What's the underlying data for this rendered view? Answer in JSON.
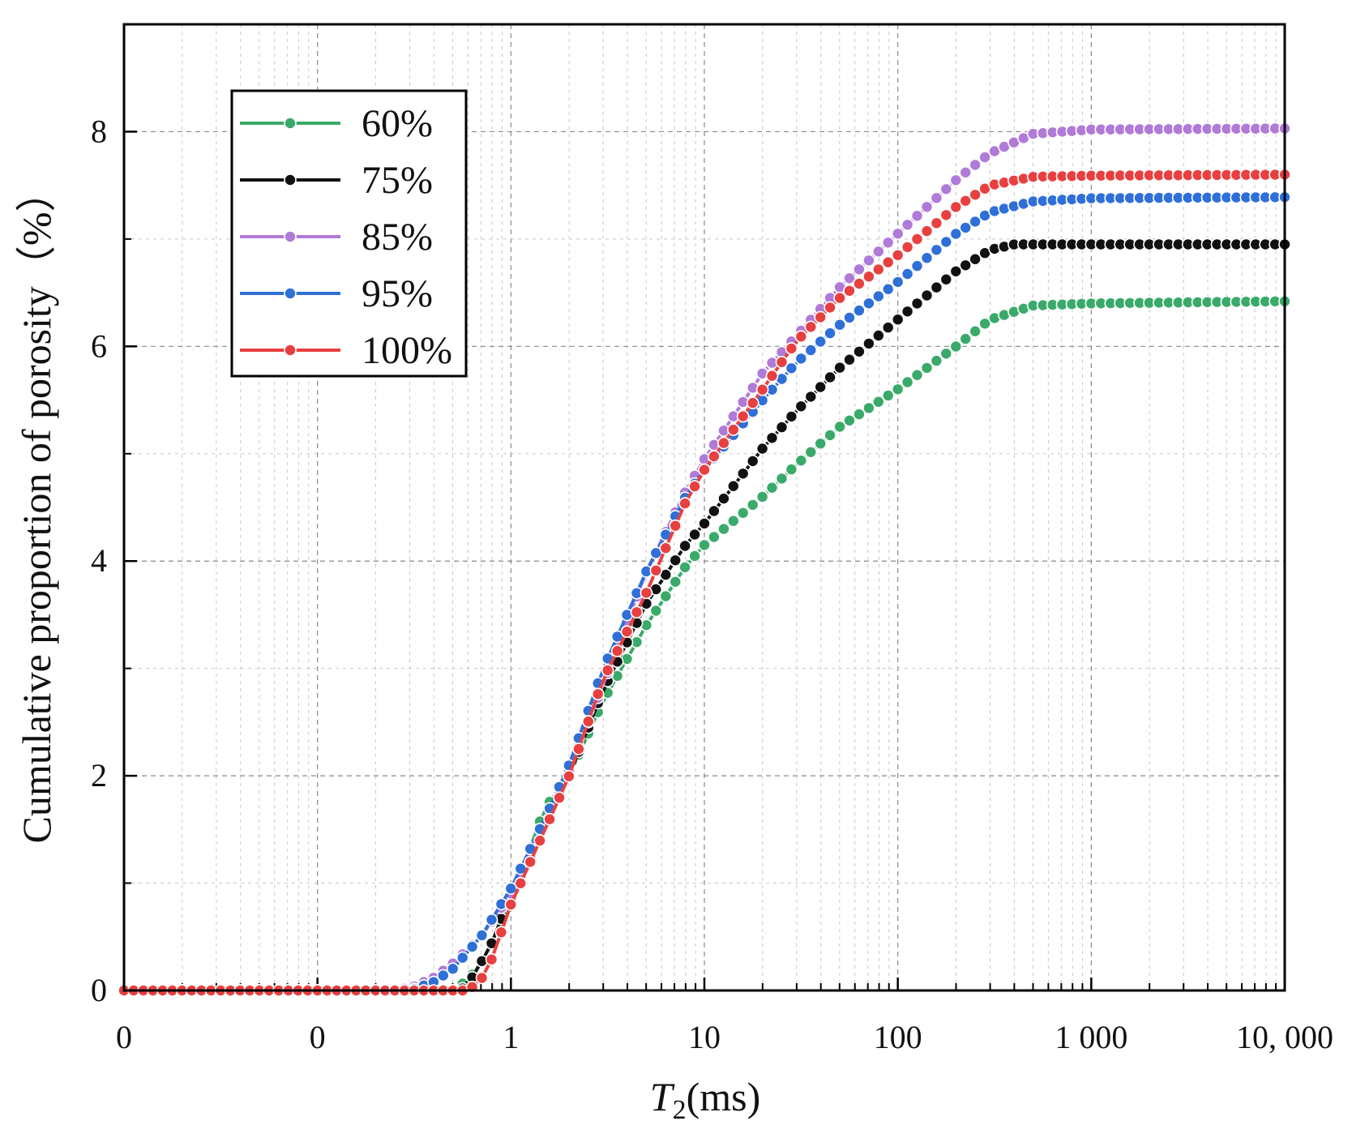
{
  "chart_data": {
    "type": "line",
    "title": "",
    "xlabel_italic": "T",
    "xlabel_sub": "2",
    "xlabel_rest": "(ms)",
    "ylabel": "Cumulative proportion of porosity（%）",
    "xscale": "log",
    "xlim": [
      0.01,
      10000
    ],
    "ylim": [
      0,
      9
    ],
    "grid": true,
    "legend_position": "top-left",
    "x_tick_values": [
      0.01,
      0.1,
      1,
      10,
      100,
      1000,
      10000
    ],
    "x_tick_labels": [
      "0",
      "0",
      "1",
      "10",
      "100",
      "1 000",
      "10, 000"
    ],
    "y_tick_values": [
      0,
      2,
      4,
      6,
      8
    ],
    "y_tick_labels": [
      "0",
      "2",
      "4",
      "6",
      "8"
    ],
    "series": [
      {
        "name": "60%",
        "color": "#3aaa6a",
        "points": [
          [
            0.01,
            0
          ],
          [
            0.4,
            0
          ],
          [
            0.5,
            0
          ],
          [
            0.6,
            0.1
          ],
          [
            0.7,
            0.25
          ],
          [
            0.8,
            0.45
          ],
          [
            1,
            0.85
          ],
          [
            1.5,
            1.7
          ],
          [
            2,
            2.0
          ],
          [
            3,
            2.7
          ],
          [
            5,
            3.4
          ],
          [
            8,
            3.95
          ],
          [
            10,
            4.15
          ],
          [
            20,
            4.6
          ],
          [
            30,
            4.9
          ],
          [
            50,
            5.25
          ],
          [
            100,
            5.6
          ],
          [
            200,
            6.0
          ],
          [
            300,
            6.25
          ],
          [
            500,
            6.38
          ],
          [
            1000,
            6.4
          ],
          [
            10000,
            6.42
          ]
        ]
      },
      {
        "name": "75%",
        "color": "#111111",
        "points": [
          [
            0.01,
            0
          ],
          [
            0.4,
            0
          ],
          [
            0.55,
            0
          ],
          [
            0.65,
            0.15
          ],
          [
            0.8,
            0.45
          ],
          [
            1,
            0.9
          ],
          [
            1.5,
            1.5
          ],
          [
            2,
            2.0
          ],
          [
            3,
            2.8
          ],
          [
            5,
            3.6
          ],
          [
            8,
            4.15
          ],
          [
            10,
            4.35
          ],
          [
            20,
            5.05
          ],
          [
            30,
            5.4
          ],
          [
            50,
            5.8
          ],
          [
            100,
            6.25
          ],
          [
            200,
            6.7
          ],
          [
            300,
            6.9
          ],
          [
            400,
            6.95
          ],
          [
            1000,
            6.95
          ],
          [
            10000,
            6.95
          ]
        ]
      },
      {
        "name": "85%",
        "color": "#b07ad8",
        "points": [
          [
            0.01,
            0
          ],
          [
            0.2,
            0
          ],
          [
            0.3,
            0.02
          ],
          [
            0.4,
            0.12
          ],
          [
            0.5,
            0.25
          ],
          [
            0.7,
            0.5
          ],
          [
            1,
            0.9
          ],
          [
            1.5,
            1.5
          ],
          [
            2,
            2.05
          ],
          [
            3,
            2.85
          ],
          [
            5,
            3.9
          ],
          [
            8,
            4.65
          ],
          [
            10,
            4.95
          ],
          [
            20,
            5.75
          ],
          [
            30,
            6.1
          ],
          [
            50,
            6.55
          ],
          [
            100,
            7.05
          ],
          [
            200,
            7.55
          ],
          [
            300,
            7.8
          ],
          [
            500,
            7.98
          ],
          [
            1000,
            8.02
          ],
          [
            10000,
            8.03
          ]
        ]
      },
      {
        "name": "95%",
        "color": "#2f6fd8",
        "points": [
          [
            0.01,
            0
          ],
          [
            0.3,
            0
          ],
          [
            0.4,
            0.08
          ],
          [
            0.5,
            0.2
          ],
          [
            0.7,
            0.5
          ],
          [
            1,
            0.95
          ],
          [
            1.5,
            1.6
          ],
          [
            2,
            2.1
          ],
          [
            3,
            3.0
          ],
          [
            5,
            3.9
          ],
          [
            8,
            4.6
          ],
          [
            10,
            4.85
          ],
          [
            20,
            5.5
          ],
          [
            30,
            5.85
          ],
          [
            50,
            6.2
          ],
          [
            100,
            6.6
          ],
          [
            200,
            7.05
          ],
          [
            300,
            7.25
          ],
          [
            500,
            7.35
          ],
          [
            1000,
            7.38
          ],
          [
            10000,
            7.39
          ]
        ]
      },
      {
        "name": "100%",
        "color": "#e84040",
        "points": [
          [
            0.01,
            0
          ],
          [
            0.6,
            0
          ],
          [
            0.7,
            0.1
          ],
          [
            0.8,
            0.3
          ],
          [
            1,
            0.8
          ],
          [
            1.5,
            1.5
          ],
          [
            2,
            2.0
          ],
          [
            3,
            2.9
          ],
          [
            5,
            3.7
          ],
          [
            8,
            4.55
          ],
          [
            10,
            4.85
          ],
          [
            20,
            5.6
          ],
          [
            30,
            6.05
          ],
          [
            50,
            6.45
          ],
          [
            100,
            6.85
          ],
          [
            200,
            7.3
          ],
          [
            300,
            7.5
          ],
          [
            500,
            7.58
          ],
          [
            1000,
            7.59
          ],
          [
            10000,
            7.6
          ]
        ]
      }
    ]
  }
}
